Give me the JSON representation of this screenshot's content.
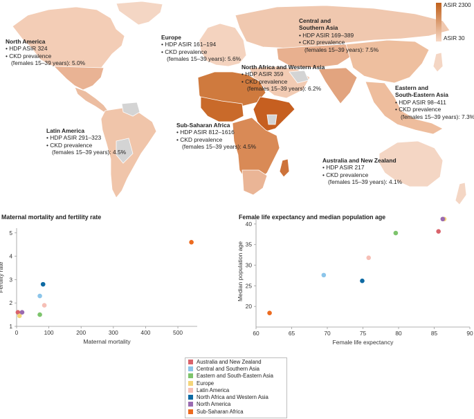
{
  "map": {
    "scale_max_label": "ASIR 2300",
    "scale_min_label": "ASIR 30",
    "colors": {
      "low": "#f7d9c7",
      "high": "#c0601b",
      "nodata": "#d4d4d4"
    },
    "regions": [
      {
        "key": "north_america",
        "name": "North America",
        "bullet1": "• HDP ASIR 324",
        "bullet2": "• CKD prevalence",
        "bullet3": "(females 15–39 years): 5.0%"
      },
      {
        "key": "europe",
        "name": "Europe",
        "bullet1": "• HDP ASIR 161–194",
        "bullet2": "• CKD prevalence",
        "bullet3": "(females 15–39 years): 5.6%"
      },
      {
        "key": "central_southern_asia",
        "name": "Central and",
        "name2": "Southern Asia",
        "bullet1": "• HDP ASIR 169–389",
        "bullet2": "• CKD prevalence",
        "bullet3": "(females 15–39 years): 7.5%"
      },
      {
        "key": "north_africa_western_asia",
        "name": "North Africa and Western Asia",
        "bullet1": "• HDP ASIR 359",
        "bullet2": "• CKD prevalence",
        "bullet3": "(females 15–39 years): 6.2%"
      },
      {
        "key": "eastern_southeastern_asia",
        "name": "Eastern and",
        "name2": "South-Eastern Asia",
        "bullet1": "• HDP ASIR 98–411",
        "bullet2": "• CKD prevalence",
        "bullet3": "(females 15–39 years): 7.3%"
      },
      {
        "key": "sub_saharan_africa",
        "name": "Sub-Saharan Africa",
        "bullet1": "• HDP ASIR 812–1616",
        "bullet2": "• CKD prevalence",
        "bullet3": "(females 15–39 years): 4.5%"
      },
      {
        "key": "latin_america",
        "name": "Latin America",
        "bullet1": "• HDP ASIR 291–323",
        "bullet2": "• CKD prevalence",
        "bullet3": "(females 15–39 years): 4.5%"
      },
      {
        "key": "australia_nz",
        "name": "Australia and New Zealand",
        "bullet1": "• HDP ASIR 217",
        "bullet2": "• CKD prevalence",
        "bullet3": "(females 15–39 years): 4.1%"
      }
    ]
  },
  "chart_data": [
    {
      "type": "scatter",
      "title": "Maternal mortality and fertility rate",
      "xlabel": "Maternal mortality",
      "ylabel": "Fertility rate",
      "xlim": [
        0,
        560
      ],
      "ylim": [
        1,
        5.2
      ],
      "xticks": [
        "0",
        "100",
        "200",
        "300",
        "400",
        "500"
      ],
      "yticks": [
        "1",
        "2",
        "3",
        "4",
        "5"
      ],
      "points": [
        {
          "series": "Australia and New Zealand",
          "x": 4,
          "y": 1.6
        },
        {
          "series": "Central and Southern Asia",
          "x": 72,
          "y": 2.3
        },
        {
          "series": "Eastern and South-Eastern Asia",
          "x": 72,
          "y": 1.5
        },
        {
          "series": "Europe",
          "x": 9,
          "y": 1.45
        },
        {
          "series": "Latin America",
          "x": 86,
          "y": 1.9
        },
        {
          "series": "North Africa and Western Asia",
          "x": 82,
          "y": 2.8
        },
        {
          "series": "North America",
          "x": 17,
          "y": 1.6
        },
        {
          "series": "Sub-Saharan Africa",
          "x": 542,
          "y": 4.6
        }
      ]
    },
    {
      "type": "scatter",
      "title": "Female life expectancy and median population age",
      "xlabel": "Female life expectancy",
      "ylabel": "Median population age",
      "xlim": [
        60,
        90
      ],
      "ylim": [
        15,
        42
      ],
      "xticks": [
        "60",
        "65",
        "70",
        "75",
        "80",
        "85",
        "90"
      ],
      "yticks": [
        "20",
        "25",
        "30",
        "35",
        "40"
      ],
      "points": [
        {
          "series": "Australia and New Zealand",
          "x": 85.6,
          "y": 38.2
        },
        {
          "series": "Central and Southern Asia",
          "x": 69.5,
          "y": 27.6
        },
        {
          "series": "Eastern and South-Eastern Asia",
          "x": 79.6,
          "y": 37.8
        },
        {
          "series": "Europe",
          "x": 86.4,
          "y": 41.2
        },
        {
          "series": "Latin America",
          "x": 75.8,
          "y": 31.8
        },
        {
          "series": "North Africa and Western Asia",
          "x": 74.9,
          "y": 26.2
        },
        {
          "series": "North America",
          "x": 86.2,
          "y": 41.2
        },
        {
          "series": "Sub-Saharan Africa",
          "x": 61.9,
          "y": 18.4
        }
      ]
    }
  ],
  "legend": {
    "items": [
      {
        "label": "Australia and New Zealand",
        "color": "#d9636b"
      },
      {
        "label": "Central and Southern Asia",
        "color": "#8cc5ea"
      },
      {
        "label": "Eastern and South-Eastern Asia",
        "color": "#7dc46c"
      },
      {
        "label": "Europe",
        "color": "#f4d57a"
      },
      {
        "label": "Latin America",
        "color": "#f6bfb6"
      },
      {
        "label": "North Africa and Western Asia",
        "color": "#0e6aa3"
      },
      {
        "label": "North America",
        "color": "#9a6ab0"
      },
      {
        "label": "Sub-Saharan Africa",
        "color": "#ec6b20"
      }
    ]
  }
}
